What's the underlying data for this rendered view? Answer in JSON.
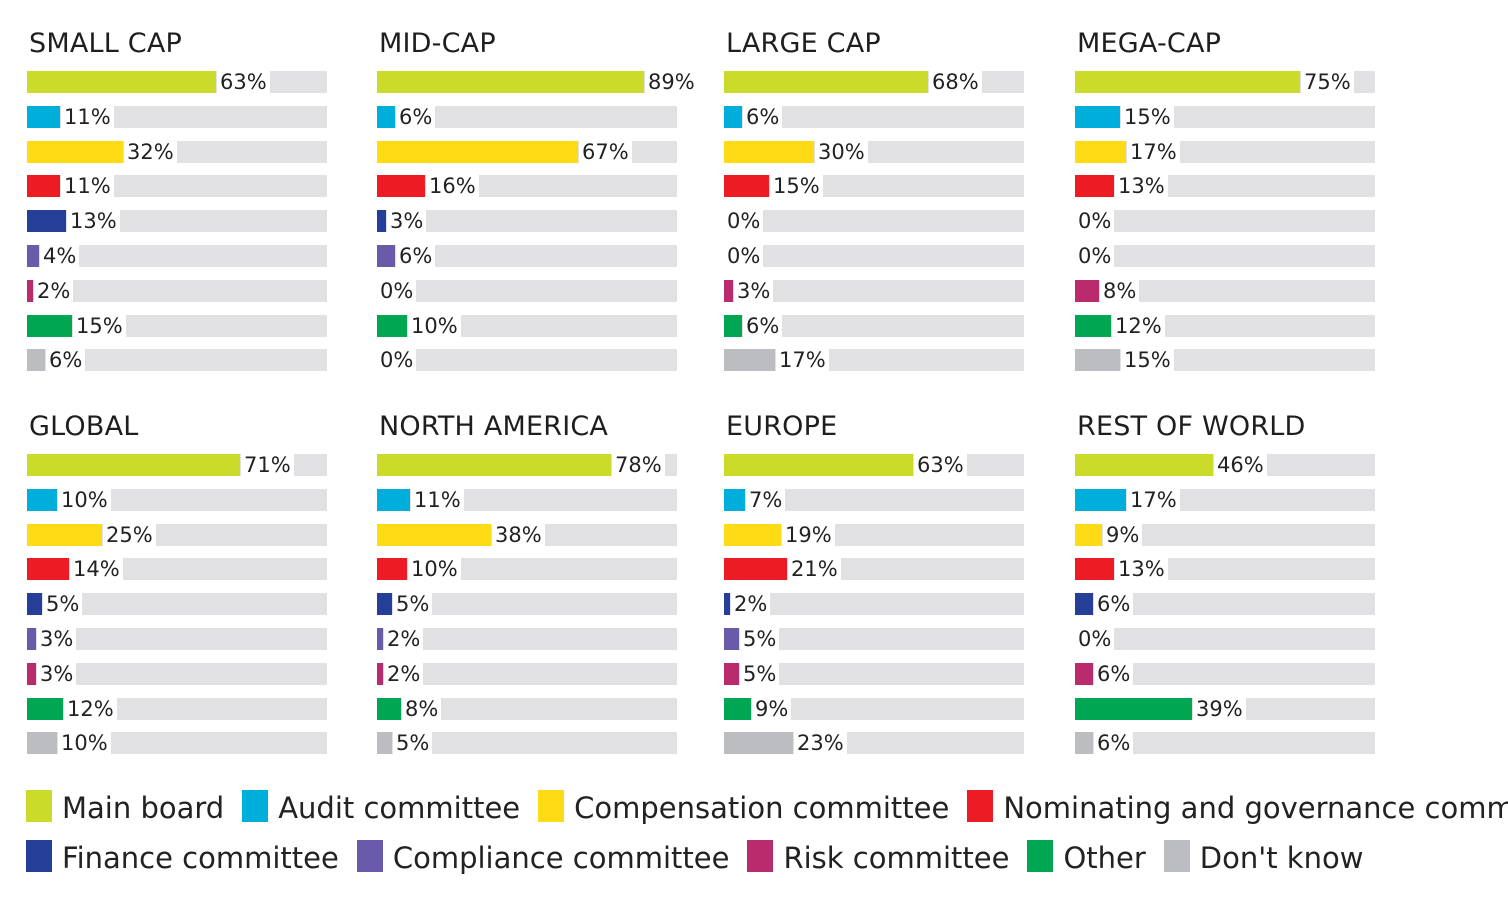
{
  "chart_data": {
    "type": "bar",
    "orientation": "horizontal",
    "xlim": [
      0,
      100
    ],
    "unit": "%",
    "categories": [
      "Main board",
      "Audit committee",
      "Compensation committee",
      "Nominating and governance committee",
      "Finance committee",
      "Compliance committee",
      "Risk committee",
      "Other",
      "Don't know"
    ],
    "colors": [
      "#cadb2a",
      "#00aedb",
      "#ffdb15",
      "#ed1c24",
      "#253e98",
      "#6a5aaa",
      "#b92b6c",
      "#00a651",
      "#bcbdc0"
    ],
    "track_color": "#e1e1e3",
    "panels": [
      {
        "title": "SMALL CAP",
        "values": [
          63,
          11,
          32,
          11,
          13,
          4,
          2,
          15,
          6
        ],
        "labels": [
          "63%",
          "11%",
          "32%",
          "11%",
          "13%",
          "4%",
          "2%",
          "15%",
          "6%"
        ]
      },
      {
        "title": "MID-CAP",
        "values": [
          89,
          6,
          67,
          16,
          3,
          6,
          0,
          10,
          0
        ],
        "labels": [
          "89%",
          "6%",
          "67%",
          "16%",
          "3%",
          "6%",
          "0%",
          "10%",
          "0%"
        ]
      },
      {
        "title": "LARGE CAP",
        "values": [
          68,
          6,
          30,
          15,
          0,
          0,
          3,
          6,
          17
        ],
        "labels": [
          "68%",
          "6%",
          "30%",
          "15%",
          "0%",
          "0%",
          "3%",
          "6%",
          "17%"
        ]
      },
      {
        "title": "MEGA-CAP",
        "values": [
          75,
          15,
          17,
          13,
          0,
          0,
          8,
          12,
          15
        ],
        "labels": [
          "75%",
          "15%",
          "17%",
          "13%",
          "0%",
          "0%",
          "8%",
          "12%",
          "15%"
        ]
      },
      {
        "title": "GLOBAL",
        "values": [
          71,
          10,
          25,
          14,
          5,
          3,
          3,
          12,
          10
        ],
        "labels": [
          "71%",
          "10%",
          "25%",
          "14%",
          "5%",
          "3%",
          "3%",
          "12%",
          "10%"
        ]
      },
      {
        "title": "NORTH AMERICA",
        "values": [
          78,
          11,
          38,
          10,
          5,
          2,
          2,
          8,
          5
        ],
        "labels": [
          "78%",
          "11%",
          "38%",
          "10%",
          "5%",
          "2%",
          "2%",
          "8%",
          "5%"
        ]
      },
      {
        "title": "EUROPE",
        "values": [
          63,
          7,
          19,
          21,
          2,
          5,
          5,
          9,
          23
        ],
        "labels": [
          "63%",
          "7%",
          "19%",
          "21%",
          "2%",
          "5%",
          "5%",
          "9%",
          "23%"
        ]
      },
      {
        "title": "REST OF WORLD",
        "values": [
          46,
          17,
          9,
          13,
          6,
          0,
          6,
          39,
          6
        ],
        "labels": [
          "46%",
          "17%",
          "9%",
          "13%",
          "6%",
          "0%",
          "6%",
          "39%",
          "6%"
        ]
      }
    ],
    "legend": {
      "placement": "bottom",
      "items": [
        {
          "label": "Main board",
          "color": "#cadb2a"
        },
        {
          "label": "Audit committee",
          "color": "#00aedb"
        },
        {
          "label": "Compensation committee",
          "color": "#ffdb15"
        },
        {
          "label": "Nominating and governance committee",
          "color": "#ed1c24"
        },
        {
          "label": "Finance committee",
          "color": "#253e98"
        },
        {
          "label": "Compliance committee",
          "color": "#6a5aaa"
        },
        {
          "label": "Risk committee",
          "color": "#b92b6c"
        },
        {
          "label": "Other",
          "color": "#00a651"
        },
        {
          "label": "Don't know",
          "color": "#bcbdc0"
        }
      ]
    }
  }
}
